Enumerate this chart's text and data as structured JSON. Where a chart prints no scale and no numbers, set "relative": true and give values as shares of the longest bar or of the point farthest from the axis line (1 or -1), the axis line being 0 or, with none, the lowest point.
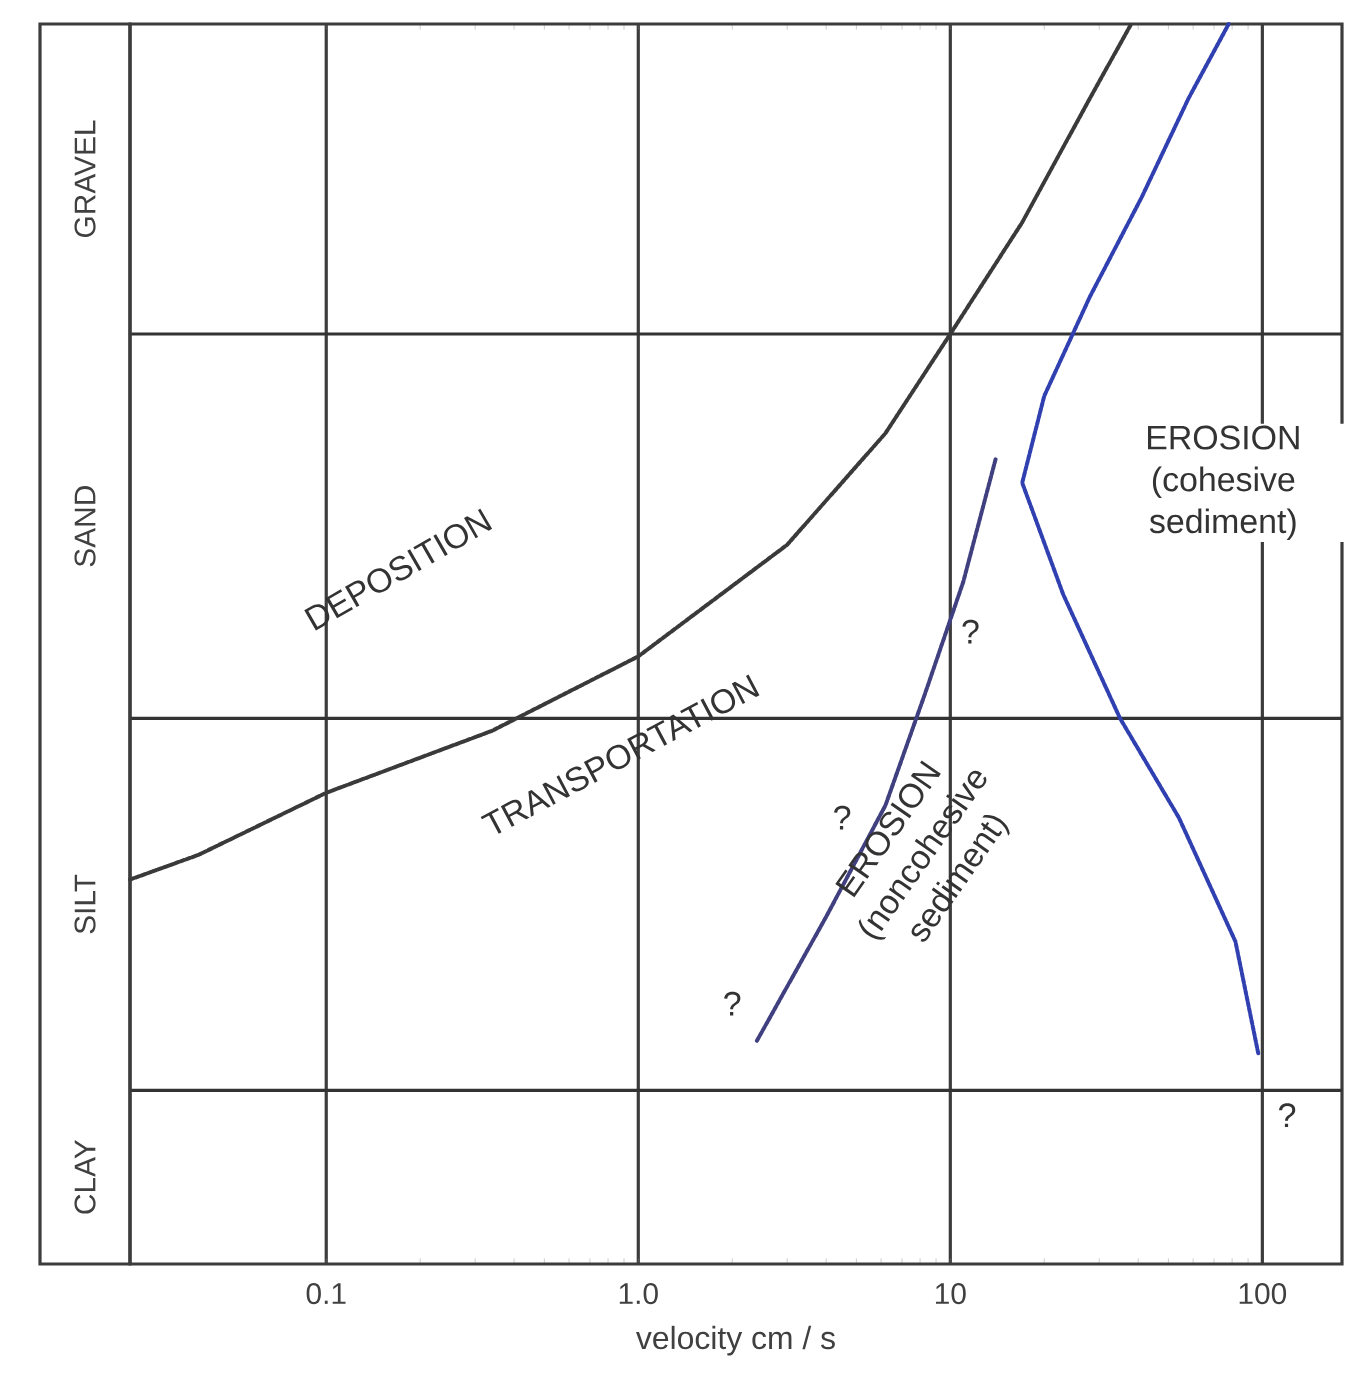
{
  "chart_data": {
    "type": "line",
    "relative": true,
    "xlabel": "velocity   cm / s",
    "log": "x",
    "xlim": [
      0.0235,
      180
    ],
    "xticks": [
      0.1,
      {
        "value": 1,
        "label": "1.0"
      },
      10,
      100
    ],
    "grid": "x",
    "marker": "none",
    "line_style": "dotted",
    "ref_lines": [
      {
        "axis": "y",
        "value": 0.14,
        "color": "#333333"
      },
      {
        "axis": "y",
        "value": 0.44,
        "color": "#333333"
      },
      {
        "axis": "y",
        "value": 0.75,
        "color": "#333333"
      }
    ],
    "series": [
      {
        "color": "#3a3a3a",
        "x": [
          0.0235,
          0.039,
          0.1,
          0.34,
          1.0,
          3.0,
          6.2,
          10,
          17,
          28,
          38
        ],
        "values": [
          0.31,
          0.33,
          0.38,
          0.43,
          0.49,
          0.58,
          0.67,
          0.75,
          0.84,
          0.94,
          1.0
        ]
      },
      {
        "color": "#3040b0",
        "x": [
          97,
          82,
          54,
          35,
          23,
          17,
          20,
          28,
          41,
          58,
          78
        ],
        "values": [
          0.17,
          0.26,
          0.36,
          0.44,
          0.54,
          0.63,
          0.7,
          0.78,
          0.86,
          0.94,
          1.0
        ]
      },
      {
        "color": "#404080",
        "x": [
          2.4,
          4.0,
          6.2,
          8.3,
          11,
          14
        ],
        "values": [
          0.18,
          0.28,
          0.37,
          0.46,
          0.55,
          0.65
        ]
      }
    ],
    "annotations": [
      "CLAY",
      "SILT",
      "SAND",
      "GRAVEL",
      "DEPOSITION",
      "TRANSPORTATION",
      "EROSION (cohesive sediment)",
      "EROSION (noncohesive sediment)",
      "?",
      "?",
      "?",
      "?"
    ]
  }
}
